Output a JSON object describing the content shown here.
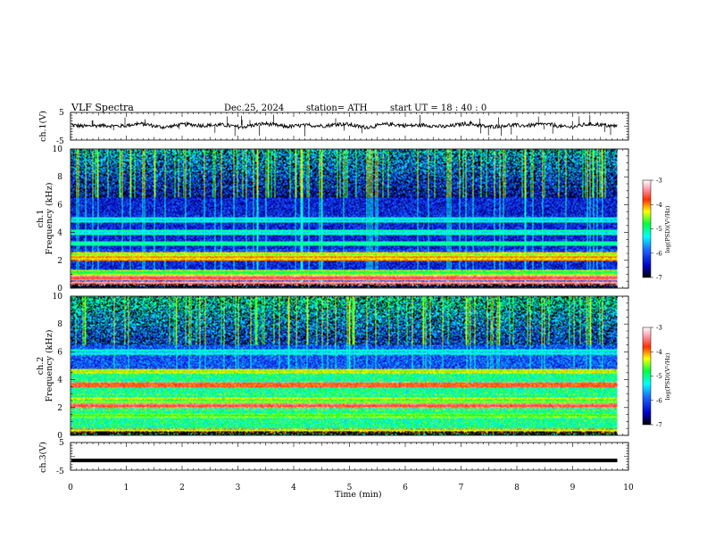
{
  "header": {
    "title": "VLF  Spectra",
    "date": "Dec.25, 2024",
    "station": "station= ATH",
    "start_ut": "start  UT  =    18 : 40 : 0"
  },
  "chart_data": [
    {
      "type": "line",
      "name": "channel-1-waveform",
      "ylabel": "ch.1(V)",
      "ytick_labels": [
        "5",
        "-5"
      ],
      "ylim": [
        -5,
        5
      ],
      "xlim": [
        0,
        10
      ],
      "x_extent_min": 9.8,
      "baseline_v": 0.3
    },
    {
      "type": "heatmap",
      "name": "channel-1-spectrogram",
      "ylabel": "ch.1\nFrequency (kHz)",
      "ylabel_lines": [
        "ch.1",
        "Frequency (kHz)"
      ],
      "ytick_labels": [
        "10",
        "8",
        "6",
        "4",
        "2",
        "0"
      ],
      "ylim_khz": [
        0,
        10
      ],
      "xlim_min": [
        0,
        10
      ],
      "x_extent_min": 9.8,
      "colorbar": {
        "label": "log(PSD)(V²/Hz)",
        "range": [
          -7,
          -3
        ],
        "tick_labels": [
          "-3",
          "-4",
          "-5",
          "-6",
          "-7"
        ]
      },
      "bands_khz": [
        {
          "f": 0.3,
          "level": -3.6
        },
        {
          "f": 0.7,
          "level": -3.8
        },
        {
          "f": 1.1,
          "level": -4.9
        },
        {
          "f": 2.1,
          "level": -4.3
        },
        {
          "f": 2.4,
          "level": -4.6
        },
        {
          "f": 3.2,
          "level": -5.3
        },
        {
          "f": 4.0,
          "level": -5.5
        },
        {
          "f": 4.9,
          "level": -5.6
        }
      ]
    },
    {
      "type": "heatmap",
      "name": "channel-2-spectrogram",
      "ylabel": "ch.2\nFrequency (kHz)",
      "ylabel_lines": [
        "ch.2",
        "Frequency (kHz)"
      ],
      "ytick_labels": [
        "10",
        "8",
        "6",
        "4",
        "2",
        "0"
      ],
      "ylim_khz": [
        0,
        10
      ],
      "xlim_min": [
        0,
        10
      ],
      "x_extent_min": 9.8,
      "colorbar": {
        "label": "log(PSD)(V²/Hz)",
        "range": [
          -7,
          -3
        ],
        "tick_labels": [
          "-3",
          "-4",
          "-5",
          "-6",
          "-7"
        ]
      },
      "bands_khz": [
        {
          "f": 0.3,
          "level": -4.4
        },
        {
          "f": 1.4,
          "level": -4.9
        },
        {
          "f": 2.1,
          "level": -3.8
        },
        {
          "f": 2.5,
          "level": -4.8
        },
        {
          "f": 3.6,
          "level": -4.0
        },
        {
          "f": 4.6,
          "level": -4.6
        },
        {
          "f": 6.0,
          "level": -5.6
        }
      ]
    },
    {
      "type": "line",
      "name": "channel-3-waveform",
      "ylabel": "ch.3(V)",
      "ytick_labels": [
        "5",
        "-5"
      ],
      "ylim": [
        -5,
        5
      ],
      "xlim": [
        0,
        10
      ],
      "x_extent_min": 9.8,
      "baseline_v": -1.5
    }
  ],
  "xaxis": {
    "label": "Time  (min)",
    "tick_labels": [
      "0",
      "1",
      "2",
      "3",
      "4",
      "5",
      "6",
      "7",
      "8",
      "9",
      "10"
    ],
    "range": [
      0,
      10
    ]
  }
}
